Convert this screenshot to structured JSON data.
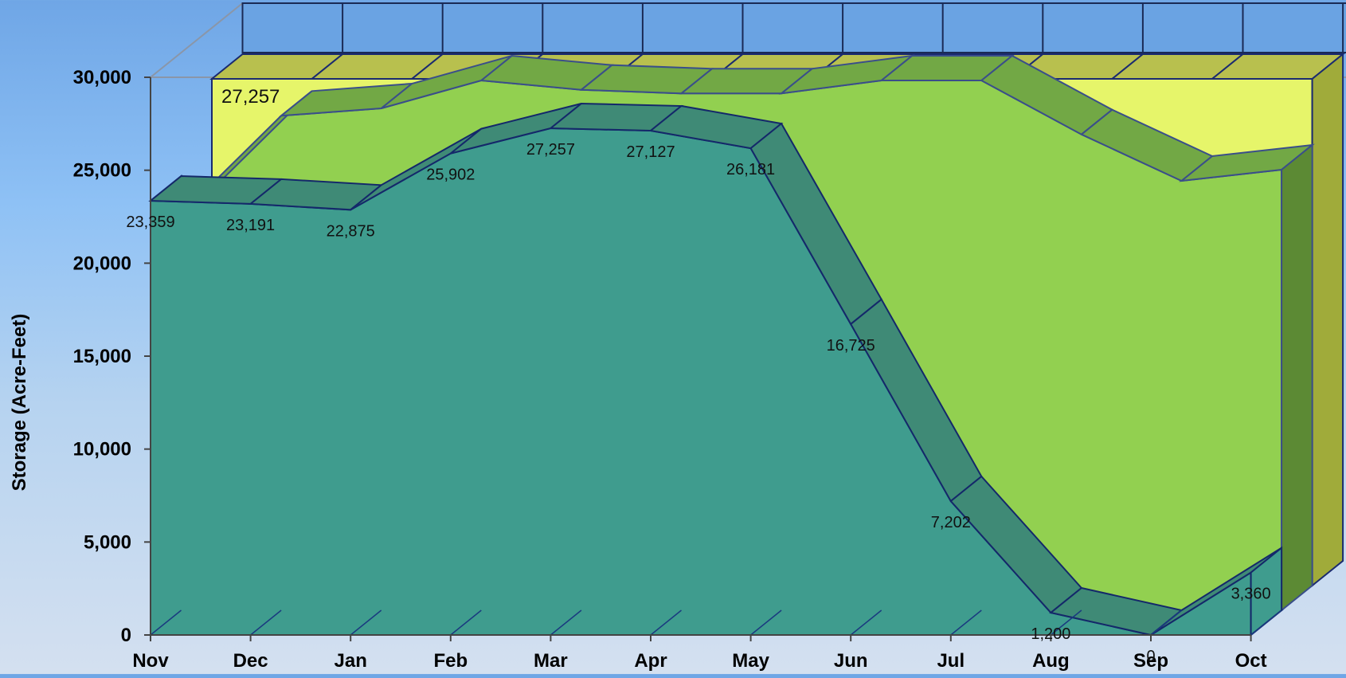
{
  "chart_data": {
    "type": "area",
    "title": "",
    "xlabel": "",
    "ylabel": "Storage (Acre-Feet)",
    "categories": [
      "Nov",
      "Dec",
      "Jan",
      "Feb",
      "Mar",
      "Apr",
      "May",
      "Jun",
      "Jul",
      "Aug",
      "Sep",
      "Oct"
    ],
    "ylim": [
      0,
      30000
    ],
    "yticks": [
      0,
      5000,
      10000,
      15000,
      20000,
      25000,
      30000
    ],
    "ytick_labels": [
      "0",
      "5,000",
      "10,000",
      "15,000",
      "20,000",
      "25,000",
      "30,000"
    ],
    "grid": false,
    "three_d": true,
    "series": [
      {
        "name": "",
        "role": "capacity",
        "color": "#e6f56a",
        "values": [
          27257,
          27257,
          27257,
          27257,
          27257,
          27257,
          27257,
          27257,
          27257,
          27257,
          27257,
          27257
        ]
      },
      {
        "name": "",
        "role": "upper",
        "color": "#92d050",
        "values": [
          21300,
          26600,
          27000,
          28500,
          28000,
          27800,
          27800,
          28500,
          28500,
          25600,
          23100,
          23700
        ]
      },
      {
        "name": "",
        "role": "storage",
        "color": "#3f9c8e",
        "values": [
          23359,
          23191,
          22875,
          25902,
          27257,
          27127,
          26181,
          16725,
          7202,
          1200,
          0,
          3360
        ],
        "labels": [
          "23,359",
          "23,191",
          "22,875",
          "25,902",
          "27,257",
          "27,127",
          "26,181",
          "16,725",
          "7,202",
          "1,200",
          "0",
          "3,360"
        ]
      }
    ],
    "annotations": [
      "27,257"
    ]
  }
}
